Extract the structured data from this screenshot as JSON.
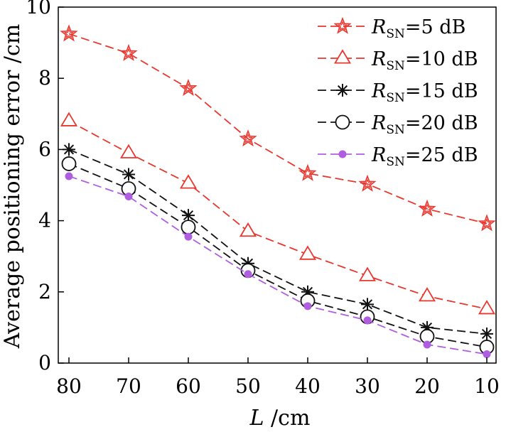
{
  "chart_data": {
    "type": "line",
    "title": "",
    "xlabel": {
      "var": "L",
      "unit": " /cm"
    },
    "ylabel": "Average positioning error /cm",
    "x": [
      80,
      70,
      60,
      50,
      40,
      30,
      20,
      10
    ],
    "x_ticks": [
      "80",
      "70",
      "60",
      "50",
      "40",
      "30",
      "20",
      "10"
    ],
    "y_ticks": [
      "0",
      "2",
      "4",
      "6",
      "8",
      "10"
    ],
    "ylim": [
      0,
      10
    ],
    "grid": false,
    "legend_position": "top-right",
    "series": [
      {
        "name": "R_SN=5 dB",
        "legend": {
          "var": "R",
          "sub": "SN",
          "rest": "=5 dB"
        },
        "color": "#e8372f",
        "marker": "star",
        "values": [
          9.25,
          8.7,
          7.72,
          6.3,
          5.33,
          5.03,
          4.33,
          3.92
        ]
      },
      {
        "name": "R_SN=10 dB",
        "legend": {
          "var": "R",
          "sub": "SN",
          "rest": "=10 dB"
        },
        "color": "#e8372f",
        "marker": "triangle",
        "values": [
          6.8,
          5.9,
          5.05,
          3.7,
          3.05,
          2.45,
          1.88,
          1.52
        ]
      },
      {
        "name": "R_SN=15 dB",
        "legend": {
          "var": "R",
          "sub": "SN",
          "rest": "=15 dB"
        },
        "color": "#111111",
        "marker": "asterisk",
        "values": [
          6.0,
          5.3,
          4.15,
          2.8,
          2.0,
          1.65,
          1.0,
          0.82
        ]
      },
      {
        "name": "R_SN=20 dB",
        "legend": {
          "var": "R",
          "sub": "SN",
          "rest": "=20 dB"
        },
        "color": "#111111",
        "marker": "circle",
        "values": [
          5.6,
          4.9,
          3.82,
          2.6,
          1.75,
          1.3,
          0.75,
          0.45
        ]
      },
      {
        "name": "R_SN=25 dB",
        "legend": {
          "var": "R",
          "sub": "SN",
          "rest": "=25 dB"
        },
        "color": "#b05ee0",
        "marker": "dot",
        "values": [
          5.25,
          4.68,
          3.55,
          2.5,
          1.6,
          1.2,
          0.52,
          0.25
        ]
      }
    ]
  }
}
